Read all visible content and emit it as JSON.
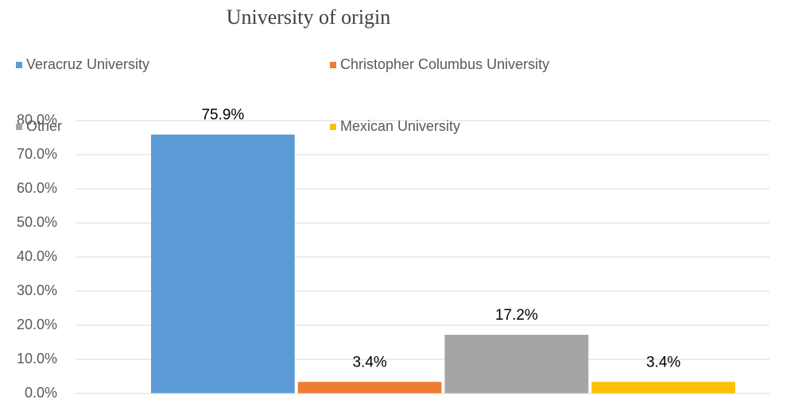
{
  "chart_data": {
    "type": "bar",
    "title": "University of origin",
    "categories": [
      null
    ],
    "series": [
      {
        "name": "Veracruz University",
        "color": "#5b9bd5",
        "values": [
          75.9
        ],
        "value_labels": [
          "75.9%"
        ]
      },
      {
        "name": "Christopher Columbus University",
        "color": "#ed7d31",
        "values": [
          3.4
        ],
        "value_labels": [
          "3.4%"
        ]
      },
      {
        "name": "Other",
        "color": "#a5a5a5",
        "values": [
          17.2
        ],
        "value_labels": [
          "17.2%"
        ]
      },
      {
        "name": "Mexican University",
        "color": "#ffc000",
        "values": [
          3.4
        ],
        "value_labels": [
          "3.4%"
        ]
      }
    ],
    "ylim": [
      0,
      80
    ],
    "yticks": [
      {
        "value": 0,
        "label": "0.0%"
      },
      {
        "value": 10,
        "label": "10.0%"
      },
      {
        "value": 20,
        "label": "20.0%"
      },
      {
        "value": 30,
        "label": "30.0%"
      },
      {
        "value": 40,
        "label": "40.0%"
      },
      {
        "value": 50,
        "label": "50.0%"
      },
      {
        "value": 60,
        "label": "60.0%"
      },
      {
        "value": 70,
        "label": "70.0%"
      },
      {
        "value": 80,
        "label": "80.0%"
      }
    ],
    "grid": true,
    "legend": "top"
  }
}
